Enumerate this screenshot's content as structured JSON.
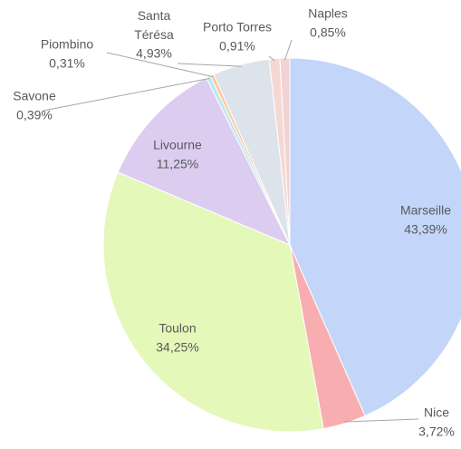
{
  "chart_data": {
    "type": "pie",
    "categories": [
      "Marseille",
      "Nice",
      "Toulon",
      "Livourne",
      "Savone",
      "Piombino",
      "Santa Térésa",
      "Porto Torres",
      "Naples"
    ],
    "values": [
      43.39,
      3.72,
      34.25,
      11.25,
      0.39,
      0.31,
      4.93,
      0.91,
      0.85
    ],
    "value_labels": [
      "43,39%",
      "3,72%",
      "34,25%",
      "11,25%",
      "0,39%",
      "0,31%",
      "4,93%",
      "0,91%",
      "0,85%"
    ],
    "colors": [
      "#c3d5f8",
      "#f8aeb0",
      "#e4f8b9",
      "#dccdf0",
      "#bfe7f3",
      "#f9c89c",
      "#dde3eb",
      "#f6d8d3",
      "#f2d3d3"
    ]
  }
}
